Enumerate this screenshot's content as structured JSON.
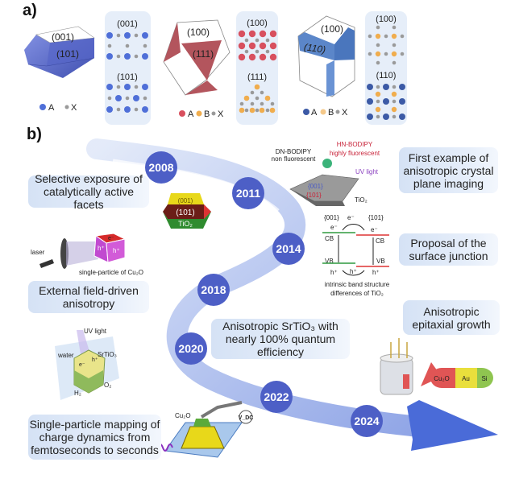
{
  "panel_a": {
    "label": "a)",
    "crystal1": {
      "top": "(001)",
      "side": "(101)",
      "color": "#6272d6"
    },
    "box1": {
      "top_title": "(001)",
      "bottom_title": "(101)"
    },
    "legend1": {
      "a": "A",
      "x": "X"
    },
    "crystal2": {
      "top": "(100)",
      "side": "(111)",
      "color": "#b3555d"
    },
    "box2": {
      "top_title": "(100)",
      "bottom_title": "(111)"
    },
    "legend2": {
      "a": "A",
      "b": "B",
      "x": "X"
    },
    "crystal3": {
      "top": "(100)",
      "side": "(110)",
      "color": "#5b86c9"
    },
    "box3": {
      "top_title": "(100)",
      "bottom_title": "(110)"
    },
    "legend3": {
      "a": "A",
      "b": "B",
      "x": "X"
    },
    "colors": {
      "blue_atom": "#4f6fd8",
      "grey_atom": "#9a9a9a",
      "red_atom": "#d8505e",
      "orange_atom": "#f0ad4e",
      "navy_atom": "#3c5aa6",
      "pale_orange_atom": "#f5c98a",
      "panel_bg": "#e6eef9"
    }
  },
  "panel_b": {
    "label": "b)",
    "years": [
      "2008",
      "2011",
      "2014",
      "2018",
      "2020",
      "2022",
      "2024"
    ],
    "milestones": {
      "m2008": "Selective exposure of catalytically active facets",
      "m2011": "First example of anisotropic crystal plane imaging",
      "m2014": "Proposal of the surface junction",
      "m2018": "External field-driven anisotropy",
      "m2020": "Anisotropic SrTiO₃ with nearly 100% quantum efficiency",
      "m2022": "Anisotropic epitaxial growth",
      "m2024": "Single-particle mapping of charge dynamics from femtoseconds to seconds"
    },
    "tio2_crystal": {
      "top": "(001)",
      "middle": "(101)",
      "bottom": "TiO₂"
    },
    "bodipy": {
      "dn": "DN-BODIPY",
      "dn_sub": "non fluorescent",
      "hn": "HN-BODIPY",
      "hn_sub": "highly fluorescent",
      "uv": "UV light",
      "f001": "{001}",
      "f101": "{101}",
      "material": "TiO₂"
    },
    "band": {
      "f001": "{001}",
      "f101": "{101}",
      "e": "e⁻",
      "cb": "CB",
      "vb": "VB",
      "h": "h⁺",
      "caption1": "intrinsic band structure",
      "caption2": "differences of TiO₂"
    },
    "laser": {
      "laser": "laser",
      "e": "e⁻",
      "h": "h⁺",
      "caption": "single-particle of Cu₂O"
    },
    "srtio3": {
      "uv": "UV light",
      "water": "water",
      "material": "SrTiO₃",
      "e": "e⁻",
      "h": "h⁺",
      "h2": "H₂",
      "o2": "O₂"
    },
    "mapping": {
      "material": "Cu₂O",
      "vdc": "V_DC"
    },
    "epitaxial": {
      "cu2o": "Cu₂O",
      "au": "Au",
      "si": "Si"
    },
    "colors": {
      "timeline": "#b9c8ee",
      "year_circle": "#4d5fc6",
      "arrow": "#4a6bd8"
    }
  }
}
